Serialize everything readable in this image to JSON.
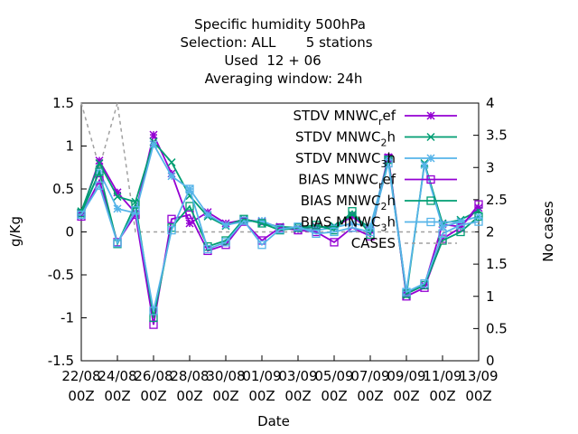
{
  "chart_data": {
    "type": "line",
    "title_lines": [
      "Specific humidity 500hPa",
      "Selection: ALL       5 stations",
      "Used  12 + 06",
      "Averaging window: 24h"
    ],
    "xlabel": "Date",
    "ylabel": "g/Kg",
    "y2label": "No cases",
    "ylim": [
      -1.5,
      1.5
    ],
    "y2lim": [
      0,
      4
    ],
    "yticks": [
      "-1.5",
      "-1",
      "-0.5",
      "0",
      "0.5",
      "1",
      "1.5"
    ],
    "y2ticks": [
      "0",
      "0.5",
      "1",
      "1.5",
      "2",
      "2.5",
      "3",
      "3.5",
      "4"
    ],
    "xticks": [
      {
        "d": "22/08",
        "t": "00Z"
      },
      {
        "d": "24/08",
        "t": "00Z"
      },
      {
        "d": "26/08",
        "t": "00Z"
      },
      {
        "d": "28/08",
        "t": "00Z"
      },
      {
        "d": "30/08",
        "t": "00Z"
      },
      {
        "d": "01/09",
        "t": "00Z"
      },
      {
        "d": "03/09",
        "t": "00Z"
      },
      {
        "d": "05/09",
        "t": "00Z"
      },
      {
        "d": "07/09",
        "t": "00Z"
      },
      {
        "d": "09/09",
        "t": "00Z"
      },
      {
        "d": "11/09",
        "t": "00Z"
      },
      {
        "d": "13/09",
        "t": "00Z"
      }
    ],
    "x_days": [
      0,
      1,
      2,
      3,
      4,
      5,
      6,
      7,
      8,
      9,
      10,
      11,
      12,
      13,
      14,
      15,
      16,
      17,
      18,
      19,
      20,
      21,
      22
    ],
    "series": [
      {
        "name": "STDV MNWC_ref",
        "legend_base": "STDV MNWC",
        "legend_sub": "r",
        "legend_tail": "ef",
        "axis": "y1",
        "color": "#9400d3",
        "marker": "star",
        "values": [
          0.22,
          0.83,
          0.46,
          0.22,
          1.13,
          0.68,
          0.1,
          0.23,
          0.1,
          0.14,
          0.12,
          0.05,
          0.03,
          0.06,
          0.05,
          0.18,
          0.02,
          0.87,
          -0.72,
          -0.62,
          0.09,
          0.06,
          0.28
        ]
      },
      {
        "name": "STDV MNWC_2h",
        "legend_base": "STDV MNWC",
        "legend_sub": "2",
        "legend_tail": "h",
        "axis": "y1",
        "color": "#009e73",
        "marker": "x",
        "values": [
          0.24,
          0.8,
          0.41,
          0.35,
          1.05,
          0.81,
          0.42,
          0.18,
          0.07,
          0.15,
          0.1,
          0.06,
          0.05,
          0.05,
          0.07,
          0.2,
          0.04,
          0.84,
          -0.74,
          0.8,
          0.1,
          0.14,
          0.25
        ]
      },
      {
        "name": "STDV MNWC_3h",
        "legend_base": "STDV MNWC",
        "legend_sub": "3",
        "legend_tail": "h",
        "axis": "y1",
        "color": "#56b4e9",
        "marker": "star",
        "values": [
          0.2,
          0.7,
          0.27,
          0.22,
          1.02,
          0.65,
          0.5,
          0.2,
          0.08,
          0.12,
          0.13,
          0.04,
          0.04,
          0.02,
          0.05,
          0.1,
          0.06,
          0.85,
          -0.7,
          0.78,
          0.06,
          0.12,
          0.18
        ]
      },
      {
        "name": "BIAS MNWC_ref",
        "legend_base": "BIAS MNWC",
        "legend_sub": "r",
        "legend_tail": "ef",
        "axis": "y1",
        "color": "#9400d3",
        "marker": "square",
        "values": [
          0.18,
          0.6,
          -0.12,
          0.2,
          -1.08,
          0.15,
          0.2,
          -0.22,
          -0.15,
          0.12,
          -0.1,
          0.05,
          0.02,
          0.0,
          -0.12,
          0.05,
          -0.05,
          0.86,
          -0.75,
          -0.65,
          -0.08,
          0.05,
          0.32
        ]
      },
      {
        "name": "BIAS MNWC_2h",
        "legend_base": "BIAS MNWC",
        "legend_sub": "2",
        "legend_tail": "h",
        "axis": "y1",
        "color": "#009e73",
        "marker": "square",
        "values": [
          0.22,
          0.7,
          -0.14,
          0.32,
          -1.0,
          0.05,
          0.3,
          -0.17,
          -0.1,
          0.15,
          0.1,
          0.02,
          0.05,
          0.08,
          0.02,
          0.24,
          -0.03,
          0.84,
          -0.72,
          -0.62,
          -0.1,
          0.0,
          0.18
        ]
      },
      {
        "name": "BIAS MNWC_3h",
        "legend_base": "BIAS MNWC",
        "legend_sub": "3",
        "legend_tail": "h",
        "axis": "y1",
        "color": "#56b4e9",
        "marker": "square",
        "values": [
          0.2,
          0.54,
          -0.13,
          0.25,
          -0.92,
          0.02,
          0.5,
          -0.2,
          -0.12,
          0.13,
          -0.15,
          0.03,
          0.06,
          -0.02,
          0.0,
          0.05,
          0.0,
          0.8,
          -0.7,
          -0.6,
          -0.02,
          0.08,
          0.12
        ]
      },
      {
        "name": "CASES",
        "legend_base": "CASES",
        "legend_sub": "",
        "legend_tail": "",
        "axis": "y2",
        "color": "#a0a0a0",
        "marker": "none",
        "dashed": true,
        "values": [
          4,
          3,
          4,
          2,
          2,
          2,
          2,
          2,
          2,
          2,
          2,
          2,
          2,
          2,
          2,
          2,
          2,
          2,
          2,
          2,
          2,
          2,
          2
        ]
      }
    ]
  }
}
